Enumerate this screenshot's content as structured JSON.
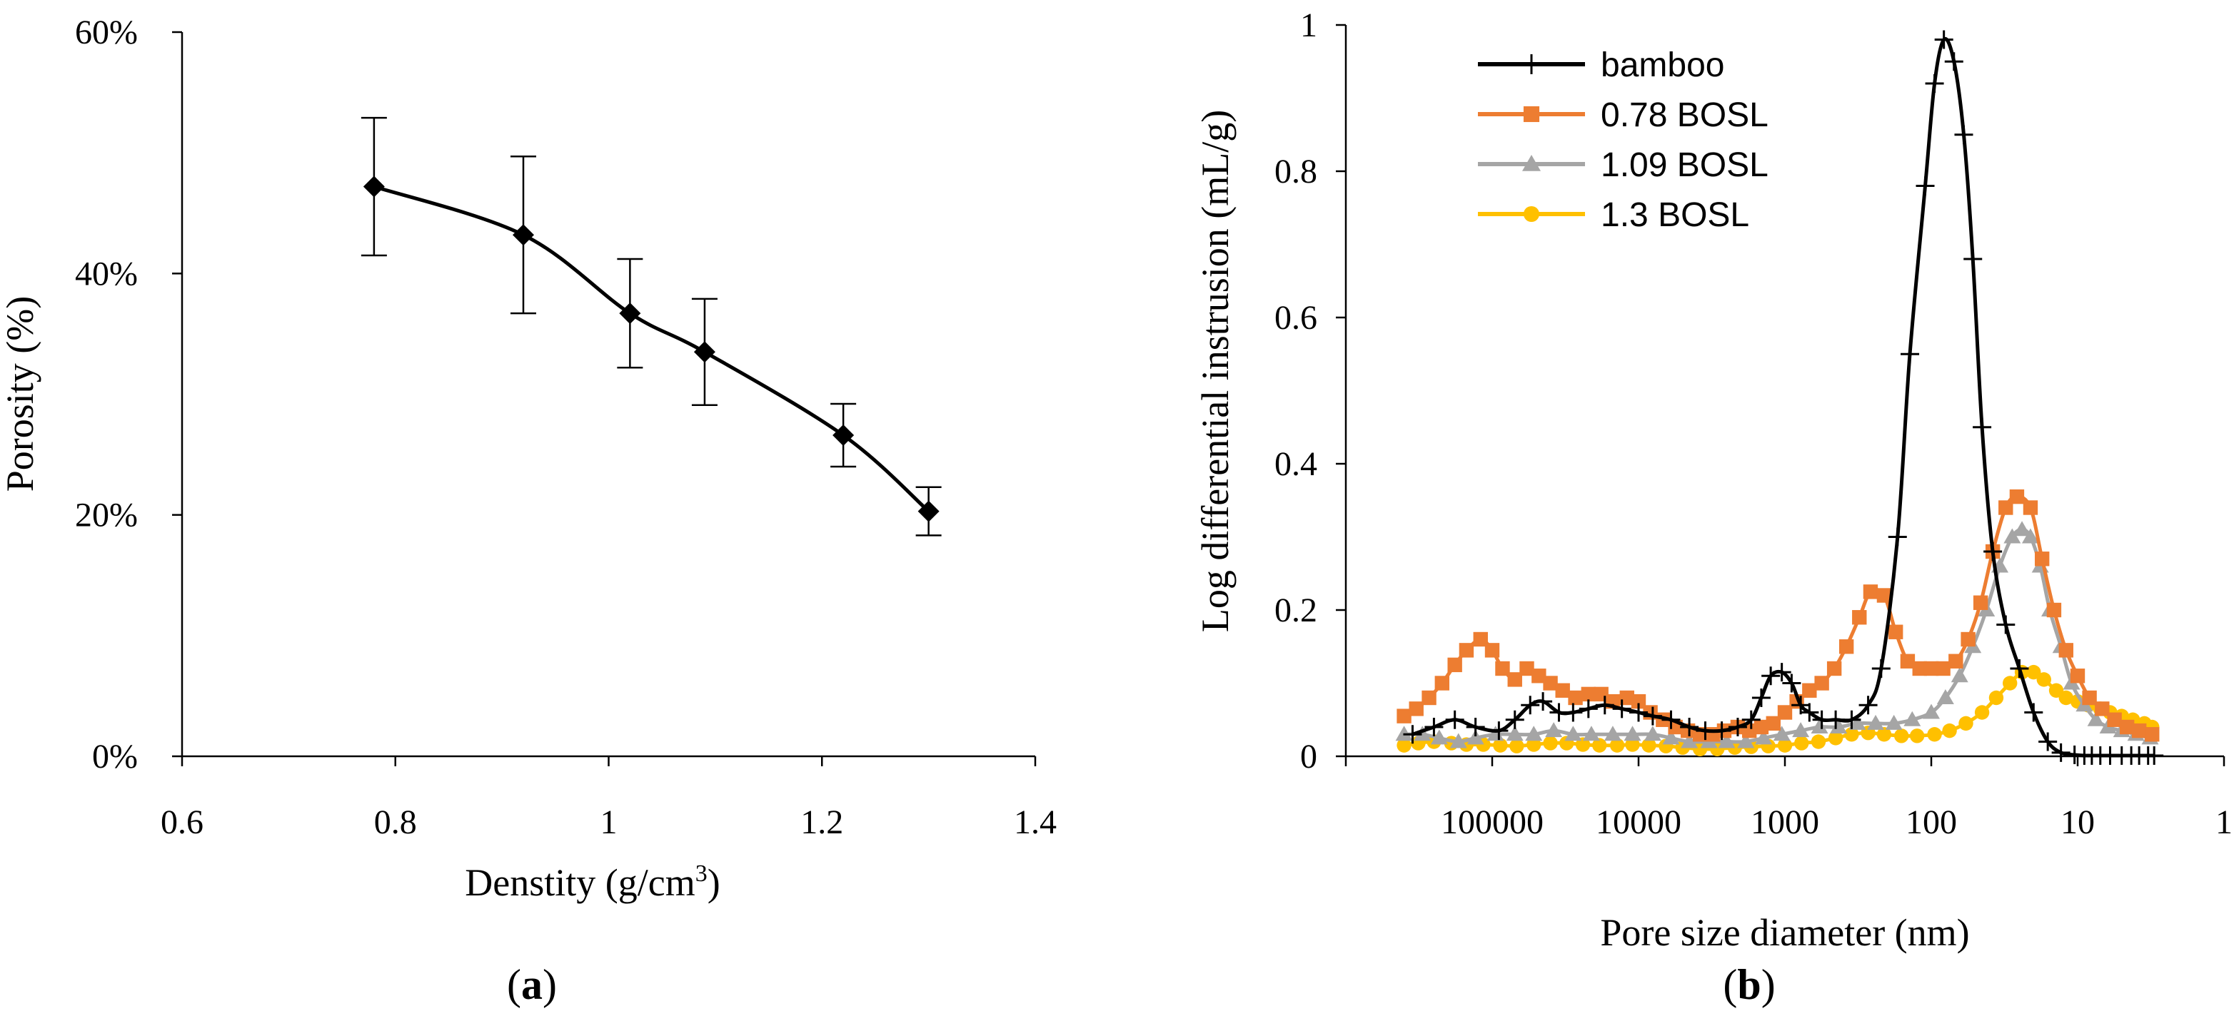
{
  "chart_data": [
    {
      "panel_label": "a",
      "type": "line",
      "xlabel": "Denstity (g/cm",
      "xlabel_sup": "3",
      "xlabel_tail": ")",
      "ylabel": "Porosity (%)",
      "xlim": [
        0.6,
        1.4
      ],
      "ylim": [
        0,
        0.6
      ],
      "xticks": [
        "0.6",
        "0.8",
        "1",
        "1.2",
        "1.4"
      ],
      "xtick_values": [
        0.6,
        0.8,
        1.0,
        1.2,
        1.4
      ],
      "yticks": [
        "0%",
        "20%",
        "40%",
        "60%"
      ],
      "ytick_values": [
        0,
        0.2,
        0.4,
        0.6
      ],
      "series": [
        {
          "name": "Porosity",
          "color": "#000000",
          "marker": "diamond",
          "x": [
            0.78,
            0.92,
            1.02,
            1.09,
            1.22,
            1.3
          ],
          "y": [
            0.472,
            0.432,
            0.367,
            0.335,
            0.266,
            0.203
          ],
          "err": [
            0.057,
            0.065,
            0.045,
            0.044,
            0.026,
            0.02
          ]
        }
      ]
    },
    {
      "panel_label": "b",
      "type": "line",
      "xlabel": "Pore size diameter (nm)",
      "ylabel": "Log differential instrusion (mL/g)",
      "xscale": "log-reversed",
      "xlim": [
        1000000,
        1
      ],
      "ylim": [
        0,
        1
      ],
      "xticks": [
        "100000",
        "10000",
        "1000",
        "100",
        "10",
        "1"
      ],
      "xtick_values": [
        100000,
        10000,
        1000,
        100,
        10,
        1
      ],
      "yticks": [
        "0",
        "0.2",
        "0.4",
        "0.6",
        "0.8",
        "1"
      ],
      "ytick_values": [
        0,
        0.2,
        0.4,
        0.6,
        0.8,
        1
      ],
      "legend_position": "top-left",
      "series": [
        {
          "name": "bamboo",
          "color": "#000000",
          "marker": "plus",
          "x": [
            350000,
            250000,
            180000,
            130000,
            90000,
            70000,
            55000,
            45000,
            35000,
            28000,
            22000,
            17000,
            13000,
            10000,
            8000,
            6000,
            4500,
            3500,
            2700,
            2100,
            1700,
            1450,
            1250,
            1050,
            900,
            780,
            680,
            560,
            450,
            350,
            270,
            220,
            170,
            140,
            110,
            95,
            82,
            70,
            60,
            52,
            45,
            38,
            31,
            25,
            20,
            16,
            13,
            10.5,
            9,
            8,
            7,
            6,
            5,
            4.3,
            3.8,
            3.3,
            3
          ],
          "y": [
            0.03,
            0.04,
            0.05,
            0.04,
            0.035,
            0.05,
            0.07,
            0.075,
            0.06,
            0.06,
            0.065,
            0.07,
            0.065,
            0.06,
            0.055,
            0.05,
            0.04,
            0.035,
            0.035,
            0.04,
            0.05,
            0.08,
            0.11,
            0.115,
            0.1,
            0.07,
            0.06,
            0.05,
            0.05,
            0.05,
            0.07,
            0.12,
            0.3,
            0.55,
            0.78,
            0.92,
            0.98,
            0.95,
            0.85,
            0.68,
            0.45,
            0.28,
            0.18,
            0.12,
            0.06,
            0.02,
            0.005,
            0.002,
            0.001,
            0.001,
            0.001,
            0.001,
            0.001,
            0.001,
            0.001,
            0.001,
            0.001
          ]
        },
        {
          "name": "0.78 BOSL",
          "color": "#ED7D31",
          "marker": "square",
          "x": [
            400000,
            330000,
            270000,
            220000,
            180000,
            150000,
            120000,
            100000,
            85000,
            70000,
            58000,
            48000,
            40000,
            33000,
            27000,
            22000,
            18000,
            15000,
            12000,
            10000,
            8300,
            6800,
            5600,
            4600,
            3800,
            3100,
            2600,
            2100,
            1750,
            1450,
            1200,
            1000,
            830,
            680,
            560,
            460,
            380,
            310,
            260,
            210,
            175,
            145,
            120,
            100,
            83,
            68,
            56,
            46,
            38,
            31,
            26,
            21,
            17.5,
            14.5,
            12,
            10,
            8.3,
            6.8,
            5.6,
            4.6,
            3.8,
            3.1
          ],
          "y": [
            0.055,
            0.065,
            0.08,
            0.1,
            0.125,
            0.145,
            0.16,
            0.145,
            0.12,
            0.105,
            0.12,
            0.11,
            0.1,
            0.09,
            0.08,
            0.085,
            0.085,
            0.075,
            0.08,
            0.075,
            0.06,
            0.05,
            0.04,
            0.035,
            0.03,
            0.03,
            0.035,
            0.04,
            0.035,
            0.04,
            0.045,
            0.06,
            0.075,
            0.09,
            0.1,
            0.12,
            0.15,
            0.19,
            0.225,
            0.22,
            0.17,
            0.13,
            0.12,
            0.12,
            0.12,
            0.13,
            0.16,
            0.21,
            0.28,
            0.34,
            0.355,
            0.34,
            0.27,
            0.2,
            0.145,
            0.11,
            0.08,
            0.065,
            0.05,
            0.04,
            0.035,
            0.03
          ]
        },
        {
          "name": "1.09 BOSL",
          "color": "#A5A5A5",
          "marker": "triangle",
          "x": [
            400000,
            300000,
            230000,
            170000,
            130000,
            95000,
            70000,
            52000,
            38000,
            28000,
            21000,
            15000,
            11000,
            8000,
            6000,
            4500,
            3300,
            2500,
            1850,
            1400,
            1050,
            780,
            580,
            430,
            320,
            240,
            180,
            135,
            100,
            80,
            64,
            52,
            42,
            34,
            28,
            24,
            21,
            18,
            15.5,
            13,
            11,
            9,
            7.5,
            6.2,
            5,
            4,
            3.2
          ],
          "y": [
            0.03,
            0.03,
            0.025,
            0.02,
            0.025,
            0.03,
            0.03,
            0.03,
            0.035,
            0.03,
            0.03,
            0.03,
            0.03,
            0.03,
            0.025,
            0.02,
            0.02,
            0.02,
            0.02,
            0.025,
            0.03,
            0.035,
            0.04,
            0.04,
            0.045,
            0.045,
            0.045,
            0.05,
            0.06,
            0.08,
            0.11,
            0.15,
            0.2,
            0.26,
            0.3,
            0.31,
            0.3,
            0.26,
            0.2,
            0.15,
            0.1,
            0.07,
            0.05,
            0.04,
            0.035,
            0.03,
            0.025
          ]
        },
        {
          "name": "1.3 BOSL",
          "color": "#FFC000",
          "marker": "circle",
          "x": [
            400000,
            320000,
            250000,
            190000,
            150000,
            115000,
            88000,
            68000,
            52000,
            40000,
            31000,
            24000,
            18500,
            14000,
            11000,
            8500,
            6500,
            5000,
            3800,
            2900,
            2200,
            1700,
            1300,
            1000,
            770,
            590,
            450,
            350,
            270,
            210,
            160,
            125,
            95,
            75,
            58,
            45,
            36,
            29,
            24,
            20,
            17,
            14,
            12,
            10,
            8.5,
            7,
            6,
            5,
            4.2,
            3.5,
            3.1
          ],
          "y": [
            0.015,
            0.018,
            0.02,
            0.018,
            0.016,
            0.016,
            0.015,
            0.014,
            0.016,
            0.018,
            0.018,
            0.016,
            0.015,
            0.015,
            0.016,
            0.015,
            0.014,
            0.012,
            0.01,
            0.01,
            0.012,
            0.013,
            0.014,
            0.015,
            0.018,
            0.02,
            0.025,
            0.03,
            0.032,
            0.03,
            0.028,
            0.028,
            0.03,
            0.035,
            0.045,
            0.06,
            0.08,
            0.1,
            0.115,
            0.115,
            0.105,
            0.09,
            0.08,
            0.075,
            0.07,
            0.065,
            0.06,
            0.055,
            0.05,
            0.045,
            0.04
          ]
        }
      ]
    }
  ]
}
